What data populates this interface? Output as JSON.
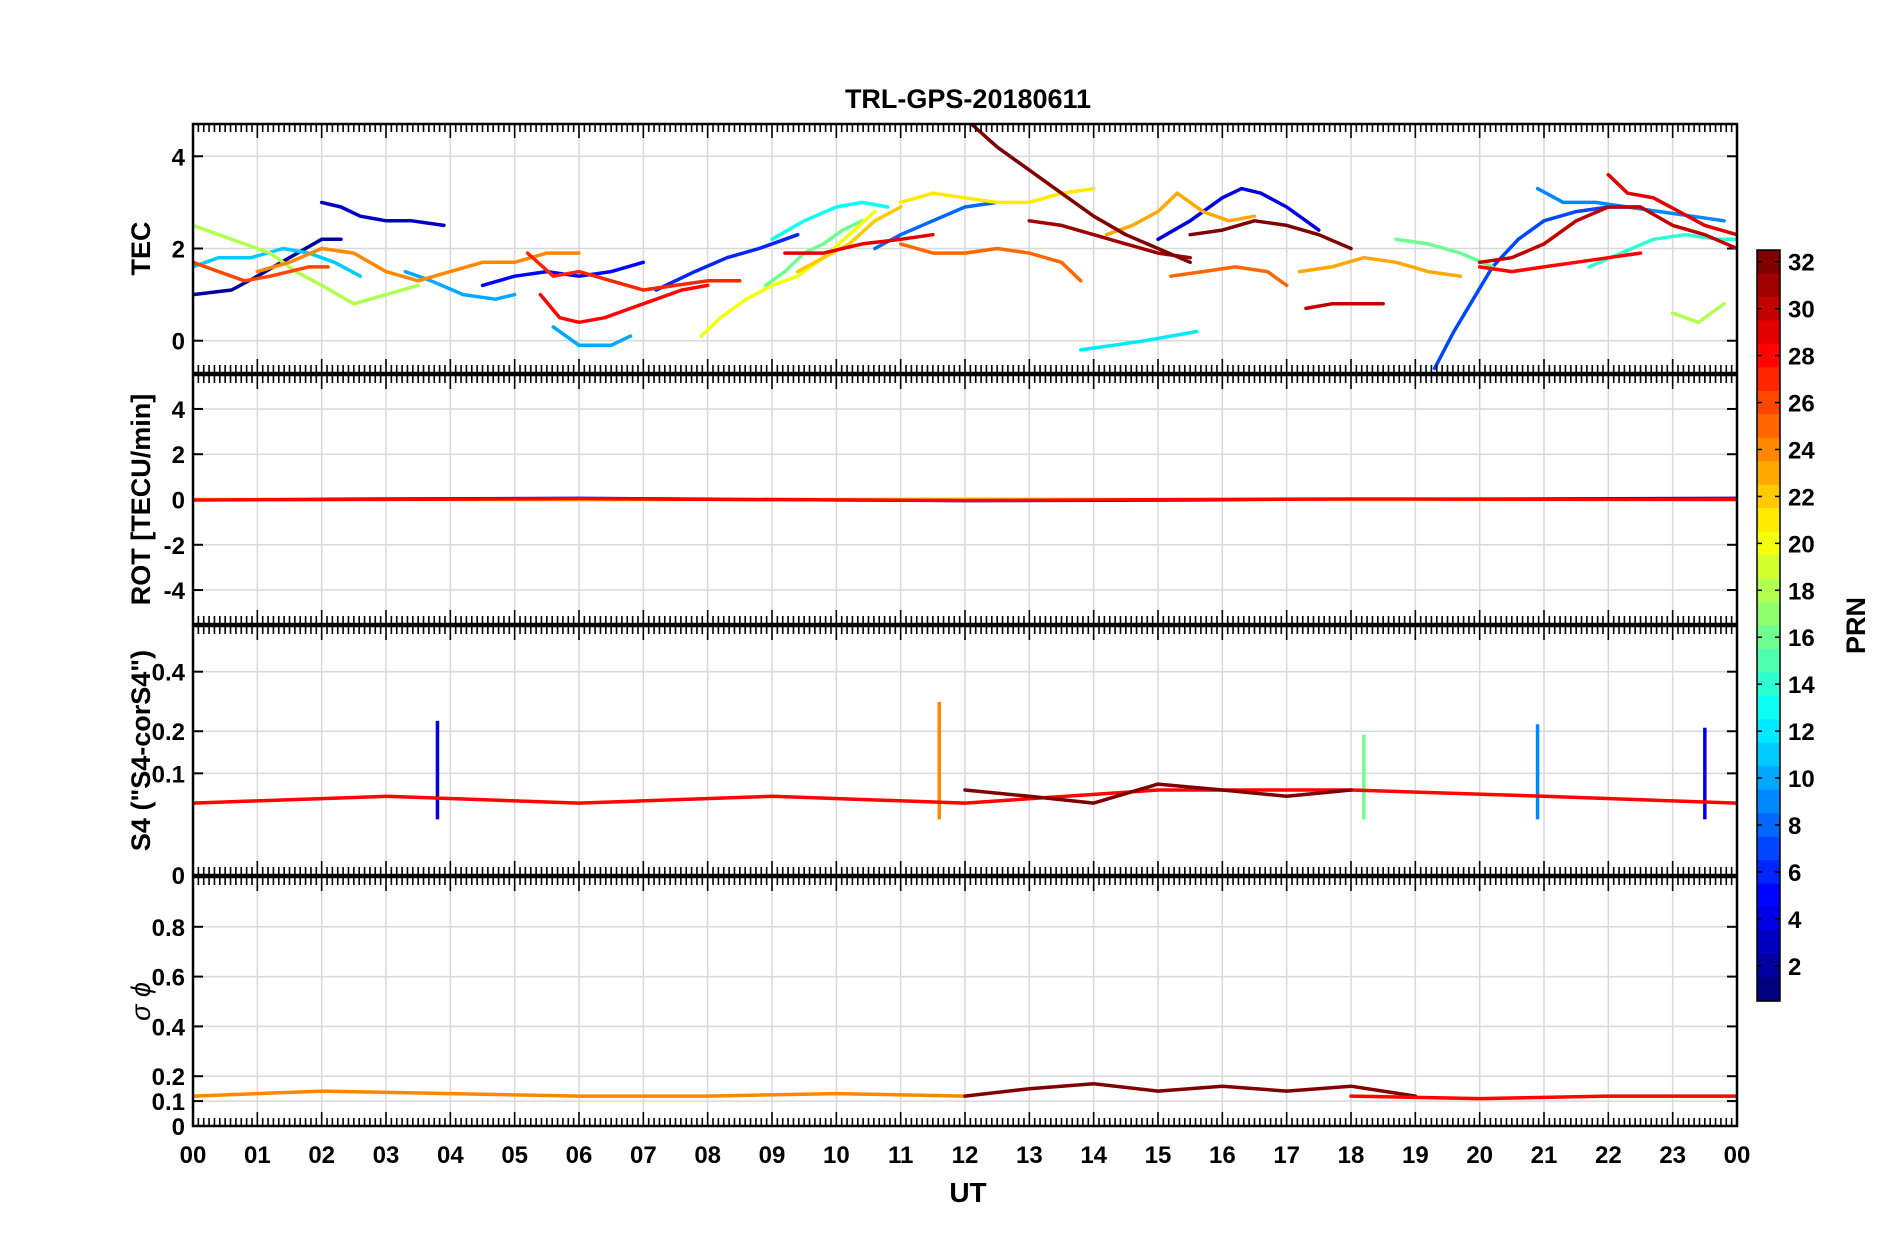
{
  "figure": {
    "title": "TRL-GPS-20180611",
    "xlabel": "UT",
    "x_ticks": [
      "00",
      "01",
      "02",
      "03",
      "04",
      "05",
      "06",
      "07",
      "08",
      "09",
      "10",
      "11",
      "12",
      "13",
      "14",
      "15",
      "16",
      "17",
      "18",
      "19",
      "20",
      "21",
      "22",
      "23",
      "00"
    ]
  },
  "colorbar": {
    "label": "PRN",
    "range": [
      1,
      32
    ],
    "ticks": [
      "2",
      "4",
      "6",
      "8",
      "10",
      "12",
      "14",
      "16",
      "18",
      "20",
      "22",
      "24",
      "26",
      "28",
      "30",
      "32"
    ],
    "colormap": "jet"
  },
  "chart_data": [
    {
      "type": "line",
      "panel": "TEC",
      "title": "TRL-GPS-20180611",
      "ylabel": "TEC",
      "xlabel": "",
      "xlim": [
        0,
        24
      ],
      "ylim": [
        -0.7,
        4.7
      ],
      "y_ticks": [
        0,
        2,
        4
      ],
      "grid": true,
      "series": [
        {
          "prn": 3,
          "x": [
            2.0,
            2.3,
            2.6,
            3.0,
            3.4,
            3.9
          ],
          "y": [
            3.0,
            2.9,
            2.7,
            2.6,
            2.6,
            2.5
          ]
        },
        {
          "prn": 2,
          "x": [
            0.0,
            0.6,
            1.0,
            1.5,
            2.0,
            2.3
          ],
          "y": [
            1.0,
            1.1,
            1.4,
            1.8,
            2.2,
            2.2
          ]
        },
        {
          "prn": 5,
          "x": [
            4.5,
            5.0,
            5.5,
            6.0,
            6.5,
            7.0
          ],
          "y": [
            1.2,
            1.4,
            1.5,
            1.4,
            1.5,
            1.7
          ]
        },
        {
          "prn": 6,
          "x": [
            7.2,
            7.8,
            8.3,
            8.8,
            9.2,
            9.4
          ],
          "y": [
            1.1,
            1.5,
            1.8,
            2.0,
            2.2,
            2.3
          ]
        },
        {
          "prn": 4,
          "x": [
            15.0,
            15.5,
            16.0,
            16.3,
            16.6,
            17.0,
            17.5
          ],
          "y": [
            2.2,
            2.6,
            3.1,
            3.3,
            3.2,
            2.9,
            2.4
          ]
        },
        {
          "prn": 7,
          "x": [
            19.3,
            19.6,
            19.9,
            20.2,
            20.6,
            21.0,
            21.5,
            22.0,
            22.5
          ],
          "y": [
            -0.6,
            0.2,
            0.9,
            1.6,
            2.2,
            2.6,
            2.8,
            2.9,
            2.9
          ]
        },
        {
          "prn": 8,
          "x": [
            10.6,
            11.0,
            11.5,
            12.0,
            12.5
          ],
          "y": [
            2.0,
            2.3,
            2.6,
            2.9,
            3.0
          ]
        },
        {
          "prn": 9,
          "x": [
            20.9,
            21.3,
            21.8,
            22.3,
            22.8,
            23.3,
            23.8
          ],
          "y": [
            3.3,
            3.0,
            3.0,
            2.9,
            2.8,
            2.7,
            2.6
          ]
        },
        {
          "prn": 10,
          "x": [
            3.3,
            3.7,
            4.2,
            4.7,
            5.0
          ],
          "y": [
            1.5,
            1.3,
            1.0,
            0.9,
            1.0
          ]
        },
        {
          "prn": 10,
          "x": [
            5.6,
            6.0,
            6.5,
            6.8
          ],
          "y": [
            0.3,
            -0.1,
            -0.1,
            0.1
          ]
        },
        {
          "prn": 12,
          "x": [
            13.8,
            14.3,
            14.8,
            15.2,
            15.6
          ],
          "y": [
            -0.2,
            -0.1,
            0.0,
            0.1,
            0.2
          ]
        },
        {
          "prn": 13,
          "x": [
            9.0,
            9.5,
            10.0,
            10.4,
            10.8
          ],
          "y": [
            2.2,
            2.6,
            2.9,
            3.0,
            2.9
          ]
        },
        {
          "prn": 14,
          "x": [
            21.7,
            22.2,
            22.7,
            23.2,
            23.7,
            24.0
          ],
          "y": [
            1.6,
            1.9,
            2.2,
            2.3,
            2.2,
            2.2
          ]
        },
        {
          "prn": 11,
          "x": [
            0.0,
            0.4,
            0.9,
            1.4,
            1.8,
            2.2,
            2.6
          ],
          "y": [
            1.6,
            1.8,
            1.8,
            2.0,
            1.9,
            1.7,
            1.4
          ]
        },
        {
          "prn": 16,
          "x": [
            8.9,
            9.2,
            9.5,
            9.8,
            10.1,
            10.4
          ],
          "y": [
            1.2,
            1.5,
            1.9,
            2.1,
            2.4,
            2.6
          ]
        },
        {
          "prn": 16,
          "x": [
            18.7,
            19.2,
            19.7,
            20.2
          ],
          "y": [
            2.2,
            2.1,
            1.9,
            1.6
          ]
        },
        {
          "prn": 18,
          "x": [
            0.0,
            0.4,
            0.8,
            1.2,
            1.6,
            2.0,
            2.5,
            3.0,
            3.5
          ],
          "y": [
            2.5,
            2.3,
            2.1,
            1.9,
            1.5,
            1.2,
            0.8,
            1.0,
            1.2
          ]
        },
        {
          "prn": 18,
          "x": [
            23.0,
            23.4,
            23.8
          ],
          "y": [
            0.6,
            0.4,
            0.8
          ]
        },
        {
          "prn": 20,
          "x": [
            7.9,
            8.2,
            8.6,
            9.0,
            9.4,
            9.8,
            10.2,
            10.6
          ],
          "y": [
            0.1,
            0.5,
            0.9,
            1.2,
            1.4,
            1.8,
            2.3,
            2.8
          ]
        },
        {
          "prn": 21,
          "x": [
            11.0,
            11.5,
            12.0,
            12.5,
            13.0,
            13.5,
            14.0
          ],
          "y": [
            3.0,
            3.2,
            3.1,
            3.0,
            3.0,
            3.2,
            3.3
          ]
        },
        {
          "prn": 22,
          "x": [
            9.4,
            9.8,
            10.2,
            10.6,
            11.0
          ],
          "y": [
            1.5,
            1.8,
            2.1,
            2.6,
            2.9
          ]
        },
        {
          "prn": 23,
          "x": [
            14.2,
            14.6,
            15.0,
            15.3,
            15.7,
            16.1,
            16.5
          ],
          "y": [
            2.3,
            2.5,
            2.8,
            3.2,
            2.8,
            2.6,
            2.7
          ]
        },
        {
          "prn": 23,
          "x": [
            17.2,
            17.7,
            18.2,
            18.7,
            19.2,
            19.7
          ],
          "y": [
            1.5,
            1.6,
            1.8,
            1.7,
            1.5,
            1.4
          ]
        },
        {
          "prn": 24,
          "x": [
            1.0,
            1.5,
            2.0,
            2.5,
            3.0,
            3.5,
            4.0,
            4.5,
            5.0,
            5.5,
            6.0
          ],
          "y": [
            1.5,
            1.7,
            2.0,
            1.9,
            1.5,
            1.3,
            1.5,
            1.7,
            1.7,
            1.9,
            1.9
          ]
        },
        {
          "prn": 25,
          "x": [
            11.0,
            11.5,
            12.0,
            12.5,
            13.0,
            13.5,
            13.8
          ],
          "y": [
            2.1,
            1.9,
            1.9,
            2.0,
            1.9,
            1.7,
            1.3
          ]
        },
        {
          "prn": 25,
          "x": [
            15.2,
            15.7,
            16.2,
            16.7,
            17.0
          ],
          "y": [
            1.4,
            1.5,
            1.6,
            1.5,
            1.2
          ]
        },
        {
          "prn": 26,
          "x": [
            0.0,
            0.4,
            0.8,
            1.2,
            1.5,
            1.8,
            2.1
          ],
          "y": [
            1.7,
            1.5,
            1.3,
            1.4,
            1.5,
            1.6,
            1.6
          ]
        },
        {
          "prn": 27,
          "x": [
            5.2,
            5.6,
            6.0,
            6.5,
            7.0,
            7.5,
            8.0,
            8.5
          ],
          "y": [
            1.9,
            1.4,
            1.5,
            1.3,
            1.1,
            1.2,
            1.3,
            1.3
          ]
        },
        {
          "prn": 28,
          "x": [
            5.4,
            5.7,
            6.0,
            6.4,
            6.8,
            7.2,
            7.6,
            8.0
          ],
          "y": [
            1.0,
            0.5,
            0.4,
            0.5,
            0.7,
            0.9,
            1.1,
            1.2
          ]
        },
        {
          "prn": 28,
          "x": [
            20.0,
            20.5,
            21.0,
            21.5,
            22.0,
            22.5
          ],
          "y": [
            1.6,
            1.5,
            1.6,
            1.7,
            1.8,
            1.9
          ]
        },
        {
          "prn": 29,
          "x": [
            9.2,
            9.8,
            10.4,
            11.0,
            11.5
          ],
          "y": [
            1.9,
            1.9,
            2.1,
            2.2,
            2.3
          ]
        },
        {
          "prn": 29,
          "x": [
            22.0,
            22.3,
            22.7,
            23.1,
            23.5,
            24.0
          ],
          "y": [
            3.6,
            3.2,
            3.1,
            2.8,
            2.5,
            2.3
          ]
        },
        {
          "prn": 30,
          "x": [
            17.3,
            17.7,
            18.1,
            18.5
          ],
          "y": [
            0.7,
            0.8,
            0.8,
            0.8
          ]
        },
        {
          "prn": 30,
          "x": [
            20.0,
            20.5,
            21.0,
            21.5,
            22.0,
            22.5,
            23.0,
            23.5,
            24.0
          ],
          "y": [
            1.7,
            1.8,
            2.1,
            2.6,
            2.9,
            2.9,
            2.5,
            2.3,
            2.0
          ]
        },
        {
          "prn": 31,
          "x": [
            13.0,
            13.5,
            14.0,
            14.5,
            15.0,
            15.5
          ],
          "y": [
            2.6,
            2.5,
            2.3,
            2.1,
            1.9,
            1.8
          ]
        },
        {
          "prn": 32,
          "x": [
            12.1,
            12.5,
            13.0,
            13.5,
            14.0,
            14.5,
            15.0,
            15.5
          ],
          "y": [
            4.7,
            4.2,
            3.7,
            3.2,
            2.7,
            2.3,
            2.0,
            1.7
          ]
        },
        {
          "prn": 32,
          "x": [
            15.5,
            16.0,
            16.5,
            17.0,
            17.5,
            18.0
          ],
          "y": [
            2.3,
            2.4,
            2.6,
            2.5,
            2.3,
            2.0
          ]
        }
      ]
    },
    {
      "type": "line",
      "panel": "ROT",
      "ylabel": "ROT [TECU/min]",
      "xlabel": "",
      "xlim": [
        0,
        24
      ],
      "ylim": [
        -5.5,
        5.5
      ],
      "y_ticks": [
        -4,
        -2,
        0,
        2,
        4
      ],
      "grid": true,
      "note_values": "all PRN series fluctuate within about ±0.1 TECU/min around 0 from 00 to 24 UT",
      "series": [
        {
          "prn": 2,
          "x": [
            0,
            6,
            12,
            18,
            24
          ],
          "y": [
            0.0,
            0.05,
            -0.05,
            0.0,
            0.05
          ]
        },
        {
          "prn": 20,
          "x": [
            0,
            6,
            12,
            18,
            24
          ],
          "y": [
            0.02,
            -0.03,
            0.04,
            -0.02,
            0.0
          ]
        },
        {
          "prn": 28,
          "x": [
            0,
            6,
            12,
            18,
            24
          ],
          "y": [
            -0.02,
            0.03,
            -0.04,
            0.02,
            0.0
          ]
        }
      ]
    },
    {
      "type": "line",
      "panel": "S4",
      "ylabel": "S4 (\"S4-corS4\")",
      "xlabel": "",
      "xlim": [
        0,
        24
      ],
      "ylim": [
        0,
        0.6
      ],
      "y_ticks": [
        "0",
        "0.1",
        "0.2",
        "0.4"
      ],
      "y_scale": "sqrt",
      "grid": true,
      "series": [
        {
          "prn": 4,
          "x": [
            3.8
          ],
          "y": [
            0.23
          ]
        },
        {
          "prn": 24,
          "x": [
            11.6
          ],
          "y": [
            0.29
          ]
        },
        {
          "prn": 9,
          "x": [
            20.9
          ],
          "y": [
            0.22
          ]
        },
        {
          "prn": 4,
          "x": [
            23.5
          ],
          "y": [
            0.21
          ]
        },
        {
          "prn": 16,
          "x": [
            18.2
          ],
          "y": [
            0.19
          ]
        },
        {
          "prn": 28,
          "x": [
            0,
            3,
            6,
            9,
            12,
            15,
            18,
            21,
            24
          ],
          "y": [
            0.05,
            0.06,
            0.05,
            0.06,
            0.05,
            0.07,
            0.07,
            0.06,
            0.05
          ]
        },
        {
          "prn": 32,
          "x": [
            12,
            13,
            14,
            15,
            16,
            17,
            18
          ],
          "y": [
            0.07,
            0.06,
            0.05,
            0.08,
            0.07,
            0.06,
            0.07
          ]
        }
      ]
    },
    {
      "type": "line",
      "panel": "sigma_phi",
      "ylabel": "σ ϕ",
      "xlabel": "UT",
      "xlim": [
        0,
        24
      ],
      "ylim": [
        0,
        1.0
      ],
      "y_ticks": [
        "0",
        "0.1",
        "0.2",
        "0.4",
        "0.6",
        "0.8"
      ],
      "grid": true,
      "series": [
        {
          "prn": 24,
          "x": [
            0,
            2,
            4,
            6,
            8,
            10,
            12
          ],
          "y": [
            0.12,
            0.14,
            0.13,
            0.12,
            0.12,
            0.13,
            0.12
          ]
        },
        {
          "prn": 32,
          "x": [
            12,
            13,
            14,
            15,
            16,
            17,
            18,
            19
          ],
          "y": [
            0.12,
            0.15,
            0.17,
            0.14,
            0.16,
            0.14,
            0.16,
            0.12
          ]
        },
        {
          "prn": 28,
          "x": [
            18,
            20,
            22,
            24
          ],
          "y": [
            0.12,
            0.11,
            0.12,
            0.12
          ]
        }
      ]
    }
  ]
}
